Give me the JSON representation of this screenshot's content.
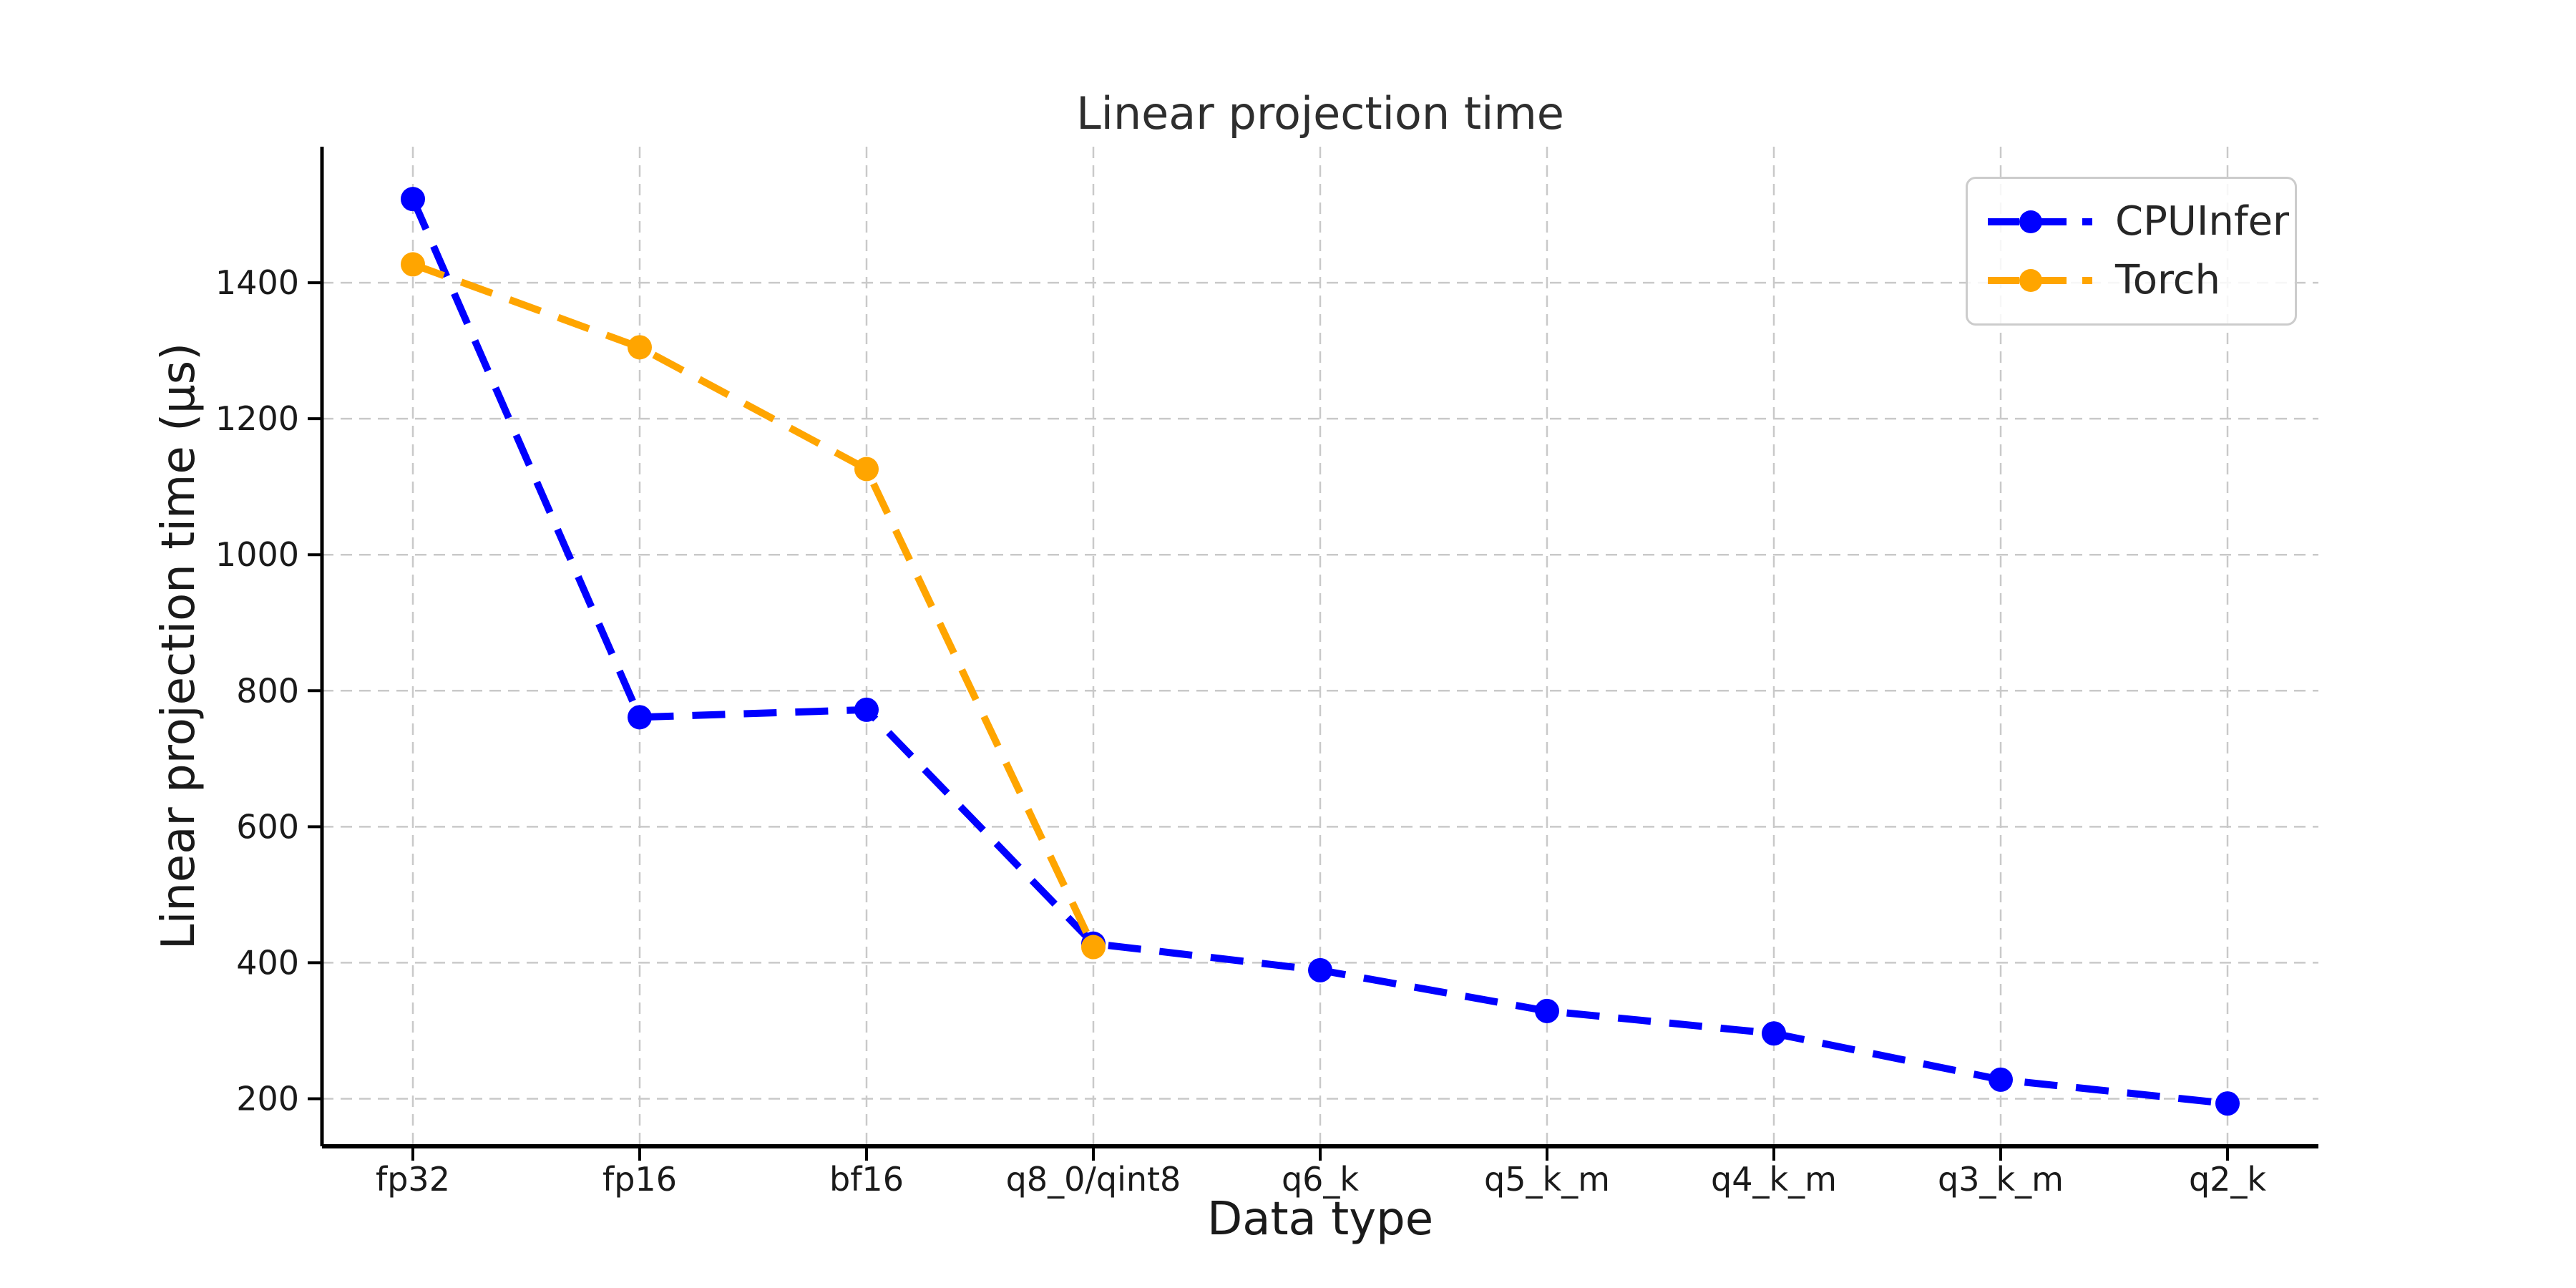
{
  "page": {
    "background": "#ffffff"
  },
  "chart_data": {
    "type": "line",
    "title": "Linear projection time",
    "xlabel": "Data type",
    "ylabel": "Linear projection time (µs)",
    "categories": [
      "fp32",
      "fp16",
      "bf16",
      "q8_0/qint8",
      "q6_k",
      "q5_k_m",
      "q4_k_m",
      "q3_k_m",
      "q2_k"
    ],
    "series": [
      {
        "name": "CPUInfer",
        "color": "#0000ff",
        "values": [
          1523,
          761,
          772,
          428,
          389,
          329,
          296,
          228,
          193
        ]
      },
      {
        "name": "Torch",
        "color": "#ffa500",
        "values": [
          1427,
          1305,
          1126,
          423
        ]
      }
    ],
    "ylim": [
      130,
      1600
    ],
    "yticks": [
      200,
      400,
      600,
      800,
      1000,
      1200,
      1400
    ],
    "grid": true,
    "grid_color": "#c9c9c9",
    "axis_color": "#000000",
    "tick_label_color": "#1a1a1a",
    "legend_position": "upper right",
    "line_style": "dashed",
    "marker": "circle"
  }
}
